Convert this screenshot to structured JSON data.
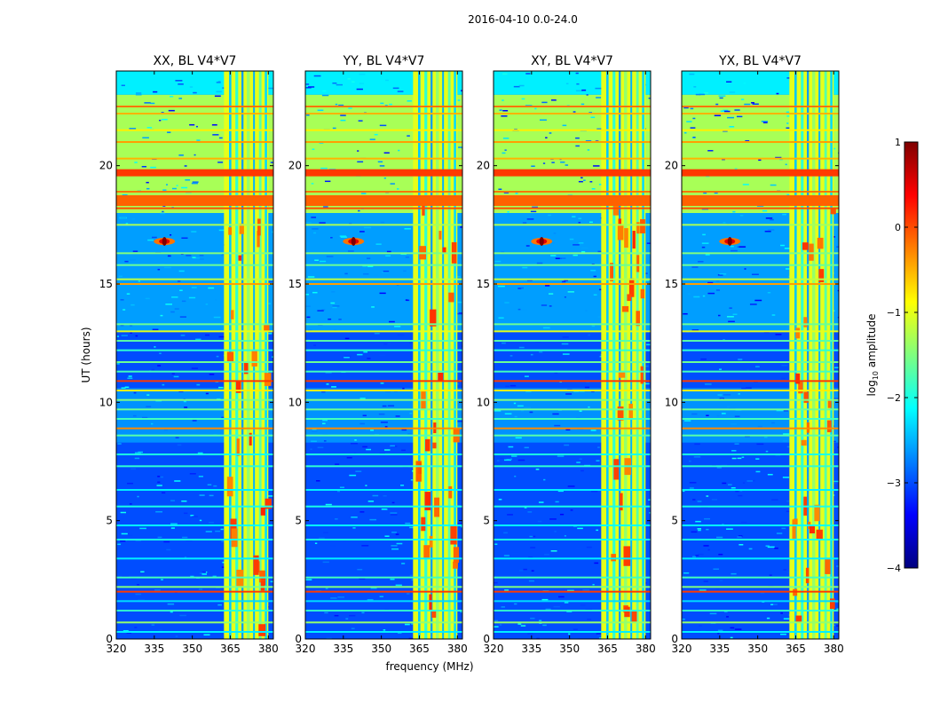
{
  "figure_title": "2016-04-10 0.0-24.0",
  "chart_data": {
    "type": "heatmap",
    "title": "2016-04-10 0.0-24.0",
    "xlabel": "frequency (MHz)",
    "ylabel": "UT (hours)",
    "xlim": [
      320,
      382
    ],
    "ylim": [
      0,
      24
    ],
    "xticks": [
      320,
      335,
      350,
      365,
      380
    ],
    "yticks": [
      0,
      5,
      10,
      15,
      20
    ],
    "colorbar": {
      "label_prefix": "log",
      "label_sub": "10",
      "label_suffix": " amplitude",
      "range": [
        -4,
        1
      ],
      "ticks": [
        1,
        0,
        -1,
        -2,
        -3,
        -4
      ],
      "colormap": "jet",
      "stops": [
        "#00007f",
        "#0000ff",
        "#007fff",
        "#00ffff",
        "#7fff7f",
        "#ffff00",
        "#ff7f00",
        "#ff0000",
        "#7f0000"
      ]
    },
    "panels": [
      {
        "name": "XX, BL V4*V7",
        "polarization": "XX",
        "baseline": "V4*V7"
      },
      {
        "name": "YY, BL V4*V7",
        "polarization": "YY",
        "baseline": "V4*V7"
      },
      {
        "name": "XY, BL V4*V7",
        "polarization": "XY",
        "baseline": "V4*V7"
      },
      {
        "name": "YX, BL V4*V7",
        "polarization": "YX",
        "baseline": "V4*V7"
      }
    ],
    "features": [
      {
        "desc": "strong RFI band",
        "freq_range_mhz": [
          362.5,
          380
        ],
        "log_amp": -1.0
      },
      {
        "desc": "elevated daytime block",
        "time_range_h": [
          18.0,
          23.0
        ],
        "log_amp": -1.3
      },
      {
        "desc": "high amplitude rows",
        "times_h": [
          18.6,
          19.7,
          10.9,
          2.0
        ],
        "log_amp": 0.1
      },
      {
        "desc": "strong point source",
        "freq_mhz": 339,
        "time_h": 16.8,
        "log_amp": 1.0
      },
      {
        "desc": "quiet background",
        "log_amp": -3.0
      }
    ]
  }
}
